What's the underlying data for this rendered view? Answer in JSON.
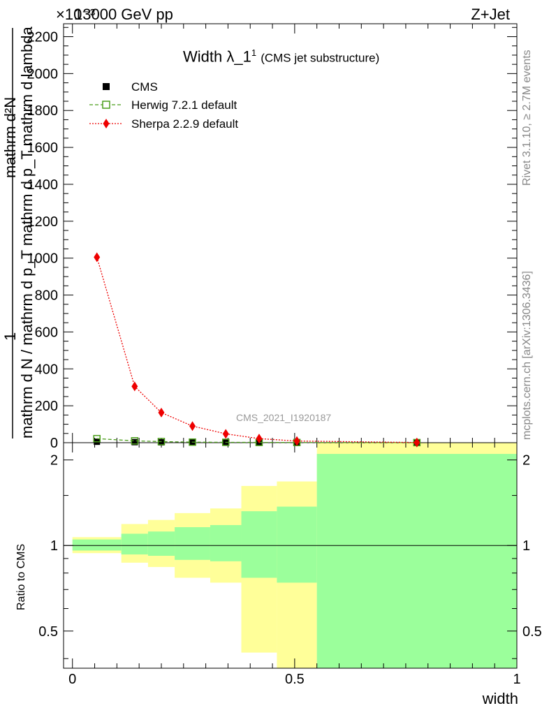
{
  "header": {
    "left": "13000 GeV pp",
    "right": "Z+Jet",
    "exponent": "×10⁻³"
  },
  "side_labels": {
    "rivet": "Rivet 3.1.10, ≥ 2.7M events",
    "mcplots": "mcplots.cern.ch [arXiv:1306.3436]"
  },
  "chart_data": [
    {
      "type": "scatter",
      "title": "Width λ_1",
      "title_superscript": "1",
      "subtitle": "(CMS jet substructure)",
      "ylabel_numerator": "1",
      "ylabel_denominator": "mathrm d N / mathrm d p_T mathrm d p_T mathrm d lambda",
      "ylabel_numerator2": "mathrm d²N",
      "watermark": "CMS_2021_I1920187",
      "xlim": [
        -0.02,
        1.0
      ],
      "ylim": [
        0,
        2270
      ],
      "yticks": [
        0,
        200,
        400,
        600,
        800,
        1000,
        1200,
        1400,
        1600,
        1800,
        2000,
        2200
      ],
      "legend_placement": "top-left",
      "series": [
        {
          "name": "CMS",
          "color": "#000000",
          "marker": "filled-square",
          "x": [
            0.055,
            0.14,
            0.2,
            0.27,
            0.345,
            0.42,
            0.505,
            0.775
          ],
          "y": [
            5,
            3,
            2,
            1.5,
            1,
            0.8,
            0.5,
            0.3
          ]
        },
        {
          "name": "Herwig 7.2.1 default",
          "color": "#4a9d1a",
          "marker": "open-square",
          "line": "dashed",
          "x": [
            0.055,
            0.14,
            0.2,
            0.27,
            0.345,
            0.42,
            0.505,
            0.775
          ],
          "y": [
            22,
            10,
            6,
            3,
            2,
            1.5,
            1,
            0.5
          ]
        },
        {
          "name": "Sherpa 2.2.9 default",
          "color": "#ee0000",
          "marker": "filled-diamond",
          "line": "dotted",
          "x": [
            0.055,
            0.14,
            0.2,
            0.27,
            0.345,
            0.42,
            0.505,
            0.775
          ],
          "y": [
            1005,
            305,
            163,
            90,
            48,
            22,
            9,
            1
          ]
        }
      ]
    },
    {
      "type": "area",
      "ylabel": "Ratio to CMS",
      "xlabel": "width",
      "xlim": [
        -0.02,
        1.0
      ],
      "ylim": [
        0.37,
        2.3
      ],
      "ylog": true,
      "yticks": [
        0.5,
        1,
        2
      ],
      "xticks": [
        0,
        0.5,
        1
      ],
      "bins": [
        {
          "x": [
            0.0,
            0.11
          ],
          "stat": [
            0.96,
            1.05
          ],
          "total": [
            0.94,
            1.07
          ]
        },
        {
          "x": [
            0.11,
            0.17
          ],
          "stat": [
            0.93,
            1.1
          ],
          "total": [
            0.87,
            1.19
          ]
        },
        {
          "x": [
            0.17,
            0.23
          ],
          "stat": [
            0.92,
            1.12
          ],
          "total": [
            0.84,
            1.23
          ]
        },
        {
          "x": [
            0.23,
            0.31
          ],
          "stat": [
            0.89,
            1.16
          ],
          "total": [
            0.77,
            1.3
          ]
        },
        {
          "x": [
            0.31,
            0.38
          ],
          "stat": [
            0.88,
            1.18
          ],
          "total": [
            0.74,
            1.35
          ]
        },
        {
          "x": [
            0.38,
            0.46
          ],
          "stat": [
            0.77,
            1.32
          ],
          "total": [
            0.42,
            1.62
          ]
        },
        {
          "x": [
            0.46,
            0.55
          ],
          "stat": [
            0.74,
            1.37
          ],
          "total": [
            0.35,
            1.68
          ]
        },
        {
          "x": [
            0.55,
            1.0
          ],
          "stat": [
            0.35,
            2.1
          ],
          "total": [
            0.35,
            2.35
          ]
        }
      ],
      "colors": {
        "stat": "#9bff9b",
        "total": "#ffff99"
      }
    }
  ]
}
